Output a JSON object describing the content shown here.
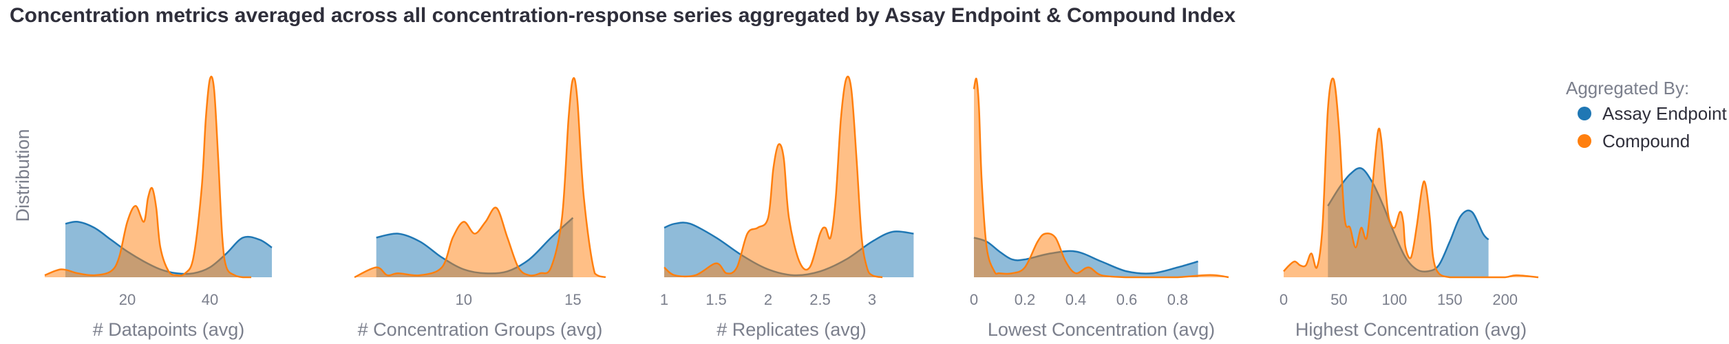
{
  "title": "Concentration metrics averaged across all concentration-response series aggregated by Assay Endpoint & Compound Index",
  "y_label": "Distribution",
  "legend": {
    "title": "Aggregated By:",
    "items": [
      {
        "label": "Assay Endpoint",
        "color": "#1f77b4"
      },
      {
        "label": "Compound",
        "color": "#ff7f0e"
      }
    ]
  },
  "chart_data": [
    {
      "type": "area",
      "xlabel": "# Datapoints (avg)",
      "xlim": [
        0,
        60
      ],
      "ticks": [
        {
          "v": 20,
          "label": "20"
        },
        {
          "v": 40,
          "label": "40"
        }
      ],
      "series": [
        {
          "name": "Assay Endpoint",
          "color": "#1f77b4",
          "x": [
            5,
            8,
            12,
            16,
            20,
            24,
            28,
            32,
            36,
            40,
            44,
            48,
            52,
            55
          ],
          "y": [
            0.27,
            0.28,
            0.25,
            0.19,
            0.13,
            0.08,
            0.04,
            0.02,
            0.02,
            0.05,
            0.12,
            0.2,
            0.19,
            0.15
          ]
        },
        {
          "name": "Compound",
          "color": "#ff7f0e",
          "x": [
            0,
            4,
            8,
            12,
            16,
            18,
            20,
            22,
            24,
            25,
            26,
            27,
            28,
            30,
            32,
            34,
            36,
            38,
            39,
            40,
            41,
            42,
            43,
            44,
            46,
            48,
            50
          ],
          "y": [
            0.01,
            0.04,
            0.02,
            0.01,
            0.03,
            0.1,
            0.28,
            0.36,
            0.28,
            0.4,
            0.45,
            0.35,
            0.15,
            0.03,
            0.01,
            0.02,
            0.1,
            0.45,
            0.8,
            1.0,
            0.95,
            0.6,
            0.2,
            0.05,
            0.01,
            0.0,
            0.0
          ]
        }
      ]
    },
    {
      "type": "area",
      "xlabel": "# Concentration Groups (avg)",
      "xlim": [
        5,
        16.5
      ],
      "ticks": [
        {
          "v": 10,
          "label": "10"
        },
        {
          "v": 15,
          "label": "15"
        }
      ],
      "series": [
        {
          "name": "Assay Endpoint",
          "color": "#1f77b4",
          "x": [
            6,
            7,
            8,
            9,
            10,
            11,
            12,
            13,
            14,
            15
          ],
          "y": [
            0.2,
            0.22,
            0.18,
            0.1,
            0.04,
            0.02,
            0.03,
            0.09,
            0.2,
            0.3
          ]
        },
        {
          "name": "Compound",
          "color": "#ff7f0e",
          "x": [
            5,
            6,
            6.5,
            7,
            8,
            9,
            9.5,
            10,
            10.5,
            11,
            11.5,
            12,
            12.5,
            13,
            13.5,
            14,
            14.5,
            14.8,
            15,
            15.2,
            15.5,
            16,
            16.5
          ],
          "y": [
            0.0,
            0.05,
            0.01,
            0.02,
            0.01,
            0.05,
            0.2,
            0.28,
            0.22,
            0.28,
            0.35,
            0.2,
            0.05,
            0.01,
            0.02,
            0.05,
            0.3,
            0.8,
            1.0,
            0.9,
            0.4,
            0.02,
            0.0
          ]
        }
      ]
    },
    {
      "type": "area",
      "xlabel": "# Replicates (avg)",
      "xlim": [
        1,
        3.45
      ],
      "ticks": [
        {
          "v": 1,
          "label": "1"
        },
        {
          "v": 1.5,
          "label": "1.5"
        },
        {
          "v": 2,
          "label": "2"
        },
        {
          "v": 2.5,
          "label": "2.5"
        },
        {
          "v": 3,
          "label": "3"
        }
      ],
      "series": [
        {
          "name": "Assay Endpoint",
          "color": "#1f77b4",
          "x": [
            1,
            1.1,
            1.25,
            1.5,
            1.75,
            2.0,
            2.25,
            2.5,
            2.75,
            3.0,
            3.2,
            3.4
          ],
          "y": [
            0.25,
            0.27,
            0.27,
            0.2,
            0.11,
            0.04,
            0.01,
            0.03,
            0.09,
            0.18,
            0.23,
            0.22
          ]
        },
        {
          "name": "Compound",
          "color": "#ff7f0e",
          "x": [
            1,
            1.1,
            1.3,
            1.5,
            1.6,
            1.7,
            1.8,
            1.9,
            2.0,
            2.05,
            2.1,
            2.15,
            2.2,
            2.3,
            2.4,
            2.5,
            2.55,
            2.6,
            2.65,
            2.7,
            2.75,
            2.8,
            2.85,
            2.9,
            2.95,
            3.0,
            3.1
          ],
          "y": [
            0.05,
            0.01,
            0.01,
            0.07,
            0.02,
            0.05,
            0.22,
            0.25,
            0.3,
            0.55,
            0.67,
            0.6,
            0.3,
            0.08,
            0.05,
            0.22,
            0.25,
            0.2,
            0.4,
            0.8,
            1.0,
            0.95,
            0.6,
            0.2,
            0.05,
            0.01,
            0.0
          ]
        }
      ]
    },
    {
      "type": "area",
      "xlabel": "Lowest Concentration (avg)",
      "xlim": [
        0,
        1.0
      ],
      "ticks": [
        {
          "v": 0,
          "label": "0"
        },
        {
          "v": 0.2,
          "label": "0.2"
        },
        {
          "v": 0.4,
          "label": "0.4"
        },
        {
          "v": 0.6,
          "label": "0.6"
        },
        {
          "v": 0.8,
          "label": "0.8"
        }
      ],
      "series": [
        {
          "name": "Assay Endpoint",
          "color": "#1f77b4",
          "x": [
            0,
            0.05,
            0.1,
            0.15,
            0.2,
            0.3,
            0.4,
            0.5,
            0.6,
            0.7,
            0.8,
            0.88
          ],
          "y": [
            0.2,
            0.18,
            0.13,
            0.09,
            0.09,
            0.12,
            0.13,
            0.08,
            0.03,
            0.02,
            0.05,
            0.08
          ]
        },
        {
          "name": "Compound",
          "color": "#ff7f0e",
          "x": [
            0,
            0.01,
            0.02,
            0.03,
            0.05,
            0.08,
            0.1,
            0.15,
            0.2,
            0.25,
            0.28,
            0.32,
            0.36,
            0.4,
            0.45,
            0.5,
            0.6,
            0.7,
            0.8,
            0.9,
            0.95,
            1.0
          ],
          "y": [
            0.95,
            1.0,
            0.85,
            0.5,
            0.15,
            0.03,
            0.02,
            0.02,
            0.05,
            0.18,
            0.22,
            0.2,
            0.08,
            0.02,
            0.05,
            0.01,
            0.0,
            0.0,
            0.0,
            0.01,
            0.01,
            0.0
          ]
        }
      ]
    },
    {
      "type": "area",
      "xlabel": "Highest Concentration (avg)",
      "xlim": [
        0,
        230
      ],
      "ticks": [
        {
          "v": 0,
          "label": "0"
        },
        {
          "v": 50,
          "label": "50"
        },
        {
          "v": 100,
          "label": "100"
        },
        {
          "v": 150,
          "label": "150"
        },
        {
          "v": 200,
          "label": "200"
        }
      ],
      "series": [
        {
          "name": "Assay Endpoint",
          "color": "#1f77b4",
          "x": [
            40,
            50,
            60,
            70,
            80,
            90,
            100,
            110,
            120,
            130,
            140,
            150,
            160,
            170,
            180,
            185
          ],
          "y": [
            0.36,
            0.45,
            0.52,
            0.55,
            0.48,
            0.36,
            0.22,
            0.1,
            0.04,
            0.03,
            0.06,
            0.18,
            0.31,
            0.33,
            0.22,
            0.19
          ]
        },
        {
          "name": "Compound",
          "color": "#ff7f0e",
          "x": [
            0,
            5,
            10,
            15,
            20,
            25,
            30,
            35,
            40,
            45,
            50,
            55,
            60,
            65,
            70,
            75,
            80,
            85,
            88,
            92,
            95,
            100,
            105,
            108,
            110,
            115,
            120,
            125,
            128,
            132,
            135,
            140,
            150,
            160,
            180,
            200,
            210,
            230
          ],
          "y": [
            0.03,
            0.06,
            0.08,
            0.06,
            0.06,
            0.12,
            0.05,
            0.25,
            0.85,
            1.0,
            0.75,
            0.3,
            0.25,
            0.15,
            0.25,
            0.2,
            0.45,
            0.73,
            0.7,
            0.45,
            0.3,
            0.25,
            0.33,
            0.28,
            0.15,
            0.1,
            0.25,
            0.45,
            0.47,
            0.3,
            0.1,
            0.02,
            0.0,
            0.0,
            0.0,
            0.0,
            0.01,
            0.0
          ]
        }
      ]
    }
  ]
}
